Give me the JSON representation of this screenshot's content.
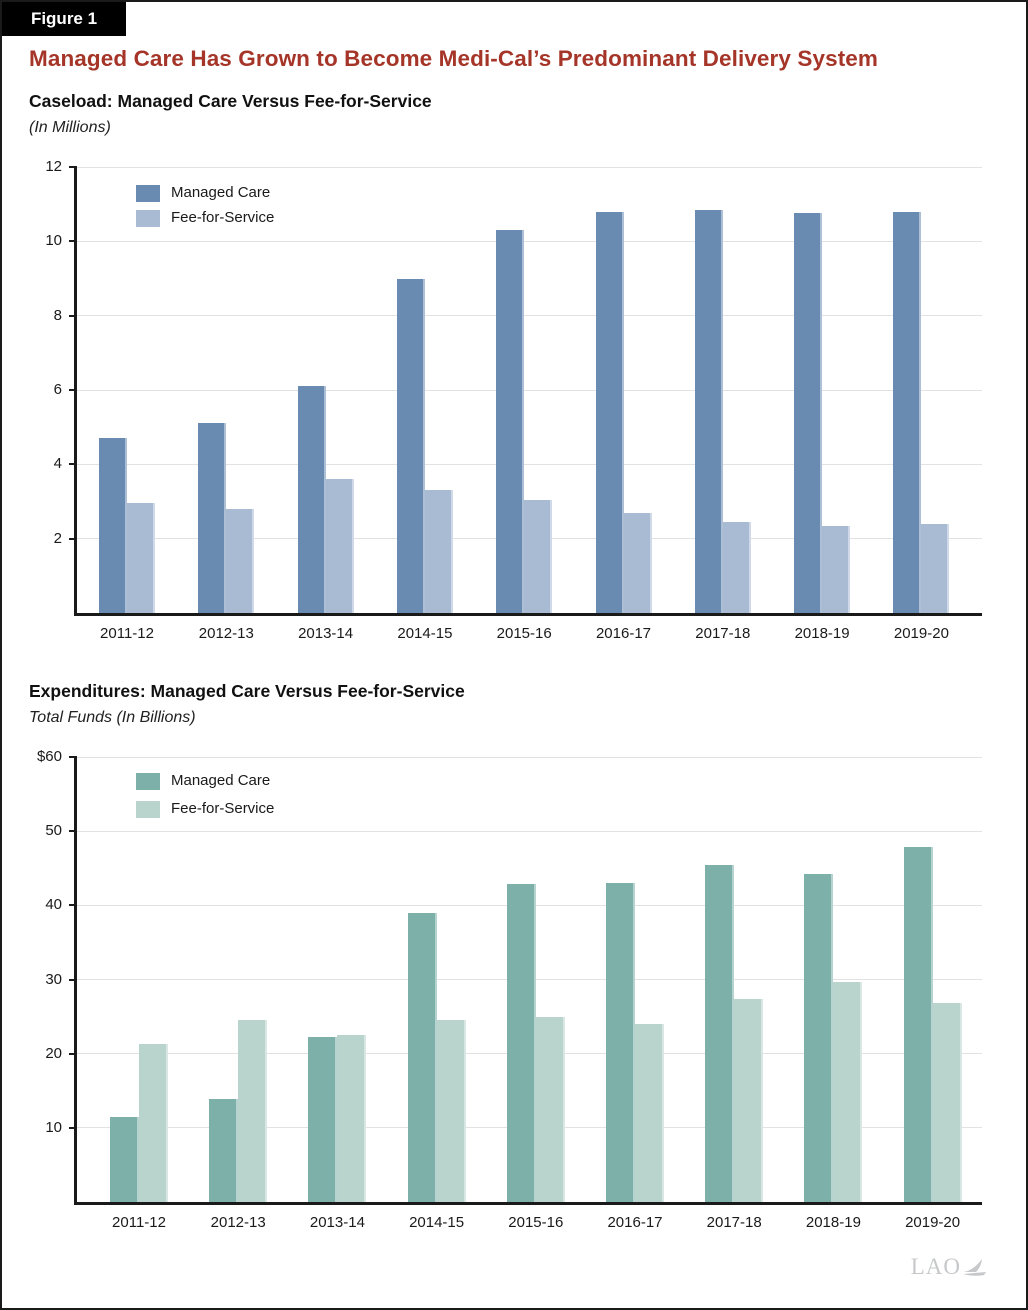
{
  "figure_label": "Figure 1",
  "title": "Managed Care Has Grown to Become Medi-Cal’s Predominant Delivery System",
  "logo": "LAO",
  "colors": {
    "title_red": "#a53528",
    "managed_care_blue": "#6a8bb1",
    "fee_for_service_blue": "#a9bad3",
    "managed_care_teal": "#7db0a8",
    "fee_for_service_teal": "#b9d3cd",
    "gridline_gray": "#e2e2e2",
    "axis_black": "#1a1a1a",
    "logo_gray": "#c6c8ca"
  },
  "chart_data": [
    {
      "type": "bar",
      "title": "Caseload: Managed Care Versus Fee-for-Service",
      "subtitle": "(In Millions)",
      "categories": [
        "2011-12",
        "2012-13",
        "2013-14",
        "2014-15",
        "2015-16",
        "2016-17",
        "2017-18",
        "2018-19",
        "2019-20"
      ],
      "series": [
        {
          "name": "Managed Care",
          "color": "#6a8bb1",
          "values": [
            4.7,
            5.1,
            6.1,
            9.0,
            10.3,
            10.8,
            10.85,
            10.75,
            10.8
          ]
        },
        {
          "name": "Fee-for-Service",
          "color": "#a9bad3",
          "values": [
            2.95,
            2.8,
            3.6,
            3.3,
            3.05,
            2.7,
            2.45,
            2.35,
            2.4
          ]
        }
      ],
      "xlabel": "",
      "ylabel": "",
      "ylim": [
        0,
        12
      ],
      "yticks": [
        2,
        4,
        6,
        8,
        10,
        12
      ],
      "ytick_labels": [
        "2",
        "4",
        "6",
        "8",
        "10",
        "12"
      ],
      "grid": true,
      "legend_position": "top-left"
    },
    {
      "type": "bar",
      "title": "Expenditures: Managed Care Versus Fee-for-Service",
      "subtitle": "Total Funds (In Billions)",
      "categories": [
        "2011-12",
        "2012-13",
        "2013-14",
        "2014-15",
        "2015-16",
        "2016-17",
        "2017-18",
        "2018-19",
        "2019-20"
      ],
      "series": [
        {
          "name": "Managed Care",
          "color": "#7db0a8",
          "values": [
            11.4,
            13.9,
            22.2,
            38.9,
            42.9,
            43.0,
            45.4,
            44.2,
            47.9
          ]
        },
        {
          "name": "Fee-for-Service",
          "color": "#b9d3cd",
          "values": [
            21.3,
            24.5,
            22.5,
            24.5,
            25.0,
            24.0,
            27.4,
            29.6,
            26.8
          ]
        }
      ],
      "xlabel": "",
      "ylabel": "",
      "ylim": [
        0,
        60
      ],
      "yticks": [
        10,
        20,
        30,
        40,
        50,
        60
      ],
      "ytick_labels": [
        "10",
        "20",
        "30",
        "40",
        "50",
        "$60"
      ],
      "grid": true,
      "legend_position": "top-left"
    }
  ]
}
